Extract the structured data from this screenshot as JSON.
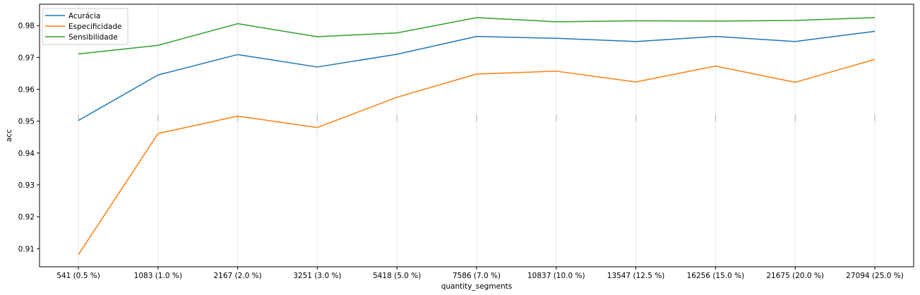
{
  "chart_data": {
    "type": "line",
    "xlabel": "quantity_segments",
    "ylabel": "acc",
    "categories": [
      "541 (0.5 %)",
      "1083 (1.0 %)",
      "2167 (2.0 %)",
      "3251 (3.0 %)",
      "5418 (5.0 %)",
      "7586 (7.0 %)",
      "10837 (10.0 %)",
      "13547 (12.5 %)",
      "16256 (15.0 %)",
      "21675 (20.0 %)",
      "27094 (25.0 %)"
    ],
    "ylim": [
      0.9043,
      0.9867
    ],
    "yticks": [
      0.91,
      0.92,
      0.93,
      0.94,
      0.95,
      0.96,
      0.97,
      0.98
    ],
    "ytick_labels": [
      "0.91",
      "0.92",
      "0.93",
      "0.94",
      "0.95",
      "0.96",
      "0.97",
      "0.98"
    ],
    "legend_position": "top-left",
    "grid": "faint vertical lines at each category",
    "series": [
      {
        "name": "Acurácia",
        "color": "#1f77b4",
        "values": [
          0.9502,
          0.9645,
          0.9709,
          0.967,
          0.971,
          0.9766,
          0.976,
          0.975,
          0.9766,
          0.975,
          0.9782
        ]
      },
      {
        "name": "Especificidade",
        "color": "#ff7f0e",
        "values": [
          0.9081,
          0.9461,
          0.9516,
          0.948,
          0.9575,
          0.9648,
          0.9657,
          0.9623,
          0.9673,
          0.9622,
          0.9694
        ]
      },
      {
        "name": "Sensibilidade",
        "color": "#2ca02c",
        "values": [
          0.9711,
          0.9738,
          0.9806,
          0.9765,
          0.9777,
          0.9825,
          0.9812,
          0.9815,
          0.9814,
          0.9816,
          0.9825
        ]
      }
    ]
  }
}
